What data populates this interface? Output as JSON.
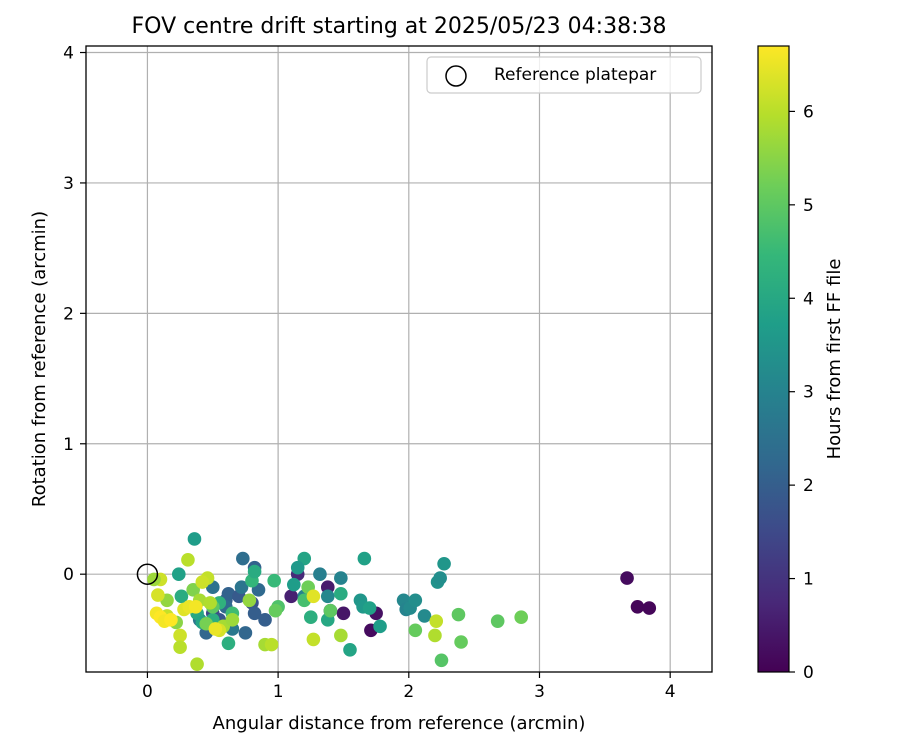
{
  "chart_data": {
    "type": "scatter",
    "title": "FOV centre drift starting at 2025/05/23 04:38:38",
    "xlabel": "Angular distance from reference (arcmin)",
    "ylabel": "Rotation from reference (arcmin)",
    "xlim": [
      -0.47,
      4.32
    ],
    "ylim": [
      -0.75,
      4.05
    ],
    "xticks": [
      0,
      1,
      2,
      3,
      4
    ],
    "yticks": [
      0,
      1,
      2,
      3,
      4
    ],
    "grid": true,
    "legend": {
      "placement": "top-right",
      "label": "Reference platepar"
    },
    "reference_point": {
      "x": 0,
      "y": 0
    },
    "colorbar": {
      "label": "Hours from first FF file",
      "min": 0,
      "max": 6.7,
      "ticks": [
        0,
        1,
        2,
        3,
        4,
        5,
        6
      ],
      "colormap": "viridis"
    },
    "series": [
      {
        "points": [
          {
            "x": 3.67,
            "y": -0.03,
            "c": 0.2
          },
          {
            "x": 3.75,
            "y": -0.25,
            "c": 0.1
          },
          {
            "x": 3.84,
            "y": -0.26,
            "c": 0.1
          },
          {
            "x": 1.71,
            "y": -0.43,
            "c": 0.2
          },
          {
            "x": 1.75,
            "y": -0.3,
            "c": 0.3
          },
          {
            "x": 1.5,
            "y": -0.3,
            "c": 0.4
          },
          {
            "x": 1.38,
            "y": -0.1,
            "c": 0.5
          },
          {
            "x": 1.1,
            "y": -0.17,
            "c": 0.6
          },
          {
            "x": 1.15,
            "y": 0.0,
            "c": 0.8
          },
          {
            "x": 1.4,
            "y": -0.28,
            "c": 1.0
          },
          {
            "x": 0.5,
            "y": -0.3,
            "c": 1.5
          },
          {
            "x": 0.55,
            "y": -0.35,
            "c": 1.8
          },
          {
            "x": 0.6,
            "y": -0.2,
            "c": 2.0
          },
          {
            "x": 0.62,
            "y": -0.15,
            "c": 2.1
          },
          {
            "x": 0.7,
            "y": -0.17,
            "c": 1.9
          },
          {
            "x": 0.75,
            "y": -0.45,
            "c": 2.2
          },
          {
            "x": 0.8,
            "y": -0.22,
            "c": 1.7
          },
          {
            "x": 0.82,
            "y": -0.3,
            "c": 2.0
          },
          {
            "x": 0.85,
            "y": -0.12,
            "c": 2.3
          },
          {
            "x": 0.82,
            "y": 0.05,
            "c": 2.1
          },
          {
            "x": 0.73,
            "y": 0.12,
            "c": 2.4
          },
          {
            "x": 0.9,
            "y": -0.35,
            "c": 2.0
          },
          {
            "x": 0.45,
            "y": -0.45,
            "c": 2.2
          },
          {
            "x": 0.5,
            "y": -0.1,
            "c": 2.5
          },
          {
            "x": 0.4,
            "y": -0.35,
            "c": 2.6
          },
          {
            "x": 0.65,
            "y": -0.42,
            "c": 2.7
          },
          {
            "x": 0.72,
            "y": -0.1,
            "c": 2.6
          },
          {
            "x": 0.6,
            "y": -0.25,
            "c": 2.3
          },
          {
            "x": 1.2,
            "y": -0.17,
            "c": 3.0
          },
          {
            "x": 1.32,
            "y": 0.0,
            "c": 2.9
          },
          {
            "x": 1.38,
            "y": -0.17,
            "c": 3.1
          },
          {
            "x": 1.48,
            "y": -0.03,
            "c": 3.0
          },
          {
            "x": 1.96,
            "y": -0.2,
            "c": 3.1
          },
          {
            "x": 1.98,
            "y": -0.27,
            "c": 3.0
          },
          {
            "x": 2.01,
            "y": -0.26,
            "c": 3.2
          },
          {
            "x": 2.05,
            "y": -0.2,
            "c": 3.3
          },
          {
            "x": 2.12,
            "y": -0.32,
            "c": 3.2
          },
          {
            "x": 2.22,
            "y": -0.06,
            "c": 3.4
          },
          {
            "x": 2.24,
            "y": -0.03,
            "c": 3.3
          },
          {
            "x": 2.27,
            "y": 0.08,
            "c": 3.5
          },
          {
            "x": 1.63,
            "y": -0.2,
            "c": 3.5
          },
          {
            "x": 1.65,
            "y": -0.25,
            "c": 3.6
          },
          {
            "x": 1.7,
            "y": -0.26,
            "c": 3.8
          },
          {
            "x": 1.78,
            "y": -0.4,
            "c": 3.7
          },
          {
            "x": 1.66,
            "y": 0.12,
            "c": 3.8
          },
          {
            "x": 1.55,
            "y": -0.58,
            "c": 3.9
          },
          {
            "x": 1.48,
            "y": -0.15,
            "c": 4.1
          },
          {
            "x": 1.38,
            "y": -0.35,
            "c": 4.0
          },
          {
            "x": 1.2,
            "y": 0.12,
            "c": 3.9
          },
          {
            "x": 1.15,
            "y": 0.05,
            "c": 3.6
          },
          {
            "x": 1.12,
            "y": -0.08,
            "c": 3.7
          },
          {
            "x": 1.25,
            "y": -0.33,
            "c": 4.2
          },
          {
            "x": 0.36,
            "y": 0.27,
            "c": 3.7
          },
          {
            "x": 0.24,
            "y": 0.0,
            "c": 3.8
          },
          {
            "x": 0.26,
            "y": -0.17,
            "c": 4.1
          },
          {
            "x": 0.38,
            "y": -0.3,
            "c": 4.0
          },
          {
            "x": 0.42,
            "y": -0.37,
            "c": 3.9
          },
          {
            "x": 0.5,
            "y": -0.35,
            "c": 4.2
          },
          {
            "x": 0.55,
            "y": -0.22,
            "c": 4.3
          },
          {
            "x": 0.62,
            "y": -0.53,
            "c": 4.2
          },
          {
            "x": 0.65,
            "y": -0.3,
            "c": 4.6
          },
          {
            "x": 0.8,
            "y": -0.05,
            "c": 4.4
          },
          {
            "x": 0.82,
            "y": 0.02,
            "c": 4.1
          },
          {
            "x": 0.97,
            "y": -0.05,
            "c": 4.5
          },
          {
            "x": 1.0,
            "y": -0.25,
            "c": 4.8
          },
          {
            "x": 1.2,
            "y": -0.2,
            "c": 4.7
          },
          {
            "x": 1.23,
            "y": -0.1,
            "c": 5.2
          },
          {
            "x": 1.4,
            "y": -0.28,
            "c": 5.0
          },
          {
            "x": 2.05,
            "y": -0.43,
            "c": 5.1
          },
          {
            "x": 2.38,
            "y": -0.31,
            "c": 5.0
          },
          {
            "x": 2.4,
            "y": -0.52,
            "c": 5.1
          },
          {
            "x": 2.68,
            "y": -0.36,
            "c": 5.0
          },
          {
            "x": 2.86,
            "y": -0.33,
            "c": 5.2
          },
          {
            "x": 2.25,
            "y": -0.66,
            "c": 4.9
          },
          {
            "x": 0.98,
            "y": -0.28,
            "c": 5.1
          },
          {
            "x": 0.45,
            "y": -0.38,
            "c": 5.3
          },
          {
            "x": 0.5,
            "y": -0.25,
            "c": 5.0
          },
          {
            "x": 0.35,
            "y": -0.12,
            "c": 5.4
          },
          {
            "x": 0.22,
            "y": -0.37,
            "c": 5.5
          },
          {
            "x": 0.15,
            "y": -0.2,
            "c": 5.6
          },
          {
            "x": 0.4,
            "y": -0.2,
            "c": 5.8
          },
          {
            "x": 0.48,
            "y": -0.22,
            "c": 5.9
          },
          {
            "x": 0.58,
            "y": -0.4,
            "c": 5.8
          },
          {
            "x": 0.65,
            "y": -0.35,
            "c": 5.7
          },
          {
            "x": 0.78,
            "y": -0.2,
            "c": 5.6
          },
          {
            "x": 0.9,
            "y": -0.54,
            "c": 5.8
          },
          {
            "x": 0.95,
            "y": -0.54,
            "c": 6.0
          },
          {
            "x": 1.27,
            "y": -0.5,
            "c": 6.1
          },
          {
            "x": 1.48,
            "y": -0.47,
            "c": 5.8
          },
          {
            "x": 2.2,
            "y": -0.47,
            "c": 5.9
          },
          {
            "x": 2.21,
            "y": -0.36,
            "c": 6.1
          },
          {
            "x": 0.31,
            "y": 0.11,
            "c": 6.0
          },
          {
            "x": 0.46,
            "y": -0.03,
            "c": 6.1
          },
          {
            "x": 0.25,
            "y": -0.47,
            "c": 6.2
          },
          {
            "x": 0.25,
            "y": -0.56,
            "c": 6.0
          },
          {
            "x": 0.38,
            "y": -0.69,
            "c": 5.9
          },
          {
            "x": 0.1,
            "y": -0.04,
            "c": 6.2
          },
          {
            "x": 0.05,
            "y": -0.04,
            "c": 5.7
          },
          {
            "x": 0.08,
            "y": -0.16,
            "c": 6.3
          },
          {
            "x": 0.15,
            "y": -0.32,
            "c": 6.1
          },
          {
            "x": 0.28,
            "y": -0.27,
            "c": 6.4
          },
          {
            "x": 0.32,
            "y": -0.25,
            "c": 6.5
          },
          {
            "x": 0.55,
            "y": -0.43,
            "c": 6.3
          },
          {
            "x": 0.42,
            "y": -0.06,
            "c": 6.2
          },
          {
            "x": 0.07,
            "y": -0.3,
            "c": 6.6
          },
          {
            "x": 0.1,
            "y": -0.33,
            "c": 6.7
          },
          {
            "x": 0.13,
            "y": -0.36,
            "c": 6.6
          },
          {
            "x": 0.18,
            "y": -0.35,
            "c": 6.7
          },
          {
            "x": 0.37,
            "y": -0.25,
            "c": 6.6
          },
          {
            "x": 0.52,
            "y": -0.42,
            "c": 6.5
          },
          {
            "x": 1.27,
            "y": -0.17,
            "c": 6.4
          }
        ]
      }
    ]
  }
}
